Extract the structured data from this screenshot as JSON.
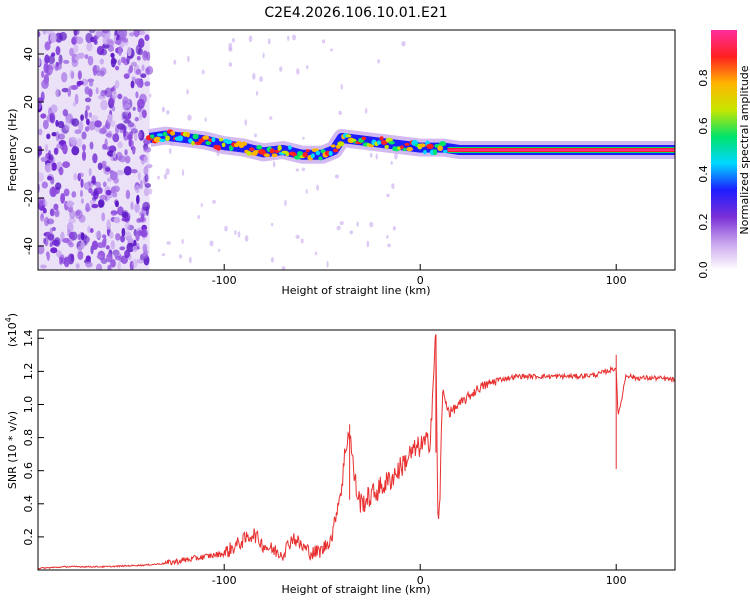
{
  "figure_title": "C2E4.2026.106.10.01.E21",
  "chart_data": [
    {
      "type": "heatmap",
      "title": "C2E4.2026.106.10.01.E21",
      "xlabel": "Height of straight line (km)",
      "ylabel": "Frequency (Hz)",
      "xlim": [
        -195,
        130
      ],
      "ylim": [
        -50,
        50
      ],
      "x_ticks": [
        -100,
        0,
        100
      ],
      "x_tick_labels": [
        "-100",
        "0",
        "100"
      ],
      "y_ticks": [
        -40,
        -20,
        0,
        20,
        40
      ],
      "y_tick_labels": [
        "-40",
        "-20",
        "0",
        "20",
        "40"
      ],
      "noise_region_x": [
        -195,
        -138
      ],
      "signal_track": {
        "x": [
          -138,
          -130,
          -120,
          -110,
          -100,
          -90,
          -80,
          -70,
          -60,
          -50,
          -44,
          -40,
          -30,
          -20,
          -10,
          0,
          12,
          20,
          40,
          60,
          80,
          100,
          130
        ],
        "y": [
          5,
          6,
          5,
          4,
          2,
          1,
          -1,
          0,
          -2,
          -2,
          0,
          5,
          4,
          3,
          2,
          1,
          1,
          0,
          0,
          0,
          0,
          0,
          0
        ]
      },
      "colorbar": {
        "label": "Normalized spectral amplitude",
        "range": [
          0,
          1
        ],
        "ticks": [
          0.0,
          0.2,
          0.4,
          0.6,
          0.8
        ],
        "tick_labels": [
          "0.0",
          "0.2",
          "0.4",
          "0.6",
          "0.8"
        ],
        "colors": [
          "#ffffff",
          "#c9a6ee",
          "#7a2fd6",
          "#1d1dff",
          "#00d8ff",
          "#00e36a",
          "#c6e600",
          "#ffb400",
          "#ff2020",
          "#ff2d9c"
        ]
      }
    },
    {
      "type": "line",
      "xlabel": "Height of straight line (km)",
      "ylabel": "SNR (10 * v/v)",
      "y_multiplier_label": "(x10",
      "y_multiplier_exp": "4",
      "xlim": [
        -195,
        130
      ],
      "ylim": [
        0,
        1.45
      ],
      "x_ticks": [
        -100,
        0,
        100
      ],
      "x_tick_labels": [
        "-100",
        "0",
        "100"
      ],
      "y_ticks": [
        0.2,
        0.4,
        0.6,
        0.8,
        1.0,
        1.2,
        1.4
      ],
      "y_tick_labels": [
        "0.2",
        "0.4",
        "0.6",
        "0.8",
        "1.0",
        "1.2",
        "1.4"
      ],
      "line_color": "#e83030",
      "series": [
        {
          "name": "SNR",
          "x": [
            -195,
            -180,
            -160,
            -140,
            -130,
            -120,
            -110,
            -100,
            -95,
            -90,
            -85,
            -80,
            -75,
            -70,
            -65,
            -60,
            -55,
            -50,
            -45,
            -42,
            -40,
            -38,
            -36,
            -34,
            -32,
            -30,
            -25,
            -20,
            -15,
            -10,
            -5,
            0,
            5,
            8,
            9,
            10,
            11,
            12,
            15,
            20,
            25,
            30,
            40,
            50,
            60,
            70,
            80,
            90,
            100,
            101,
            105,
            110,
            120,
            130
          ],
          "y": [
            0.01,
            0.02,
            0.02,
            0.03,
            0.04,
            0.06,
            0.08,
            0.1,
            0.14,
            0.18,
            0.22,
            0.15,
            0.12,
            0.1,
            0.2,
            0.14,
            0.1,
            0.12,
            0.2,
            0.4,
            0.5,
            0.75,
            0.85,
            0.6,
            0.45,
            0.4,
            0.45,
            0.5,
            0.55,
            0.62,
            0.7,
            0.75,
            0.78,
            1.42,
            0.3,
            0.35,
            1.0,
            1.05,
            0.95,
            1.0,
            1.05,
            1.1,
            1.15,
            1.17,
            1.17,
            1.17,
            1.17,
            1.18,
            1.22,
            0.92,
            1.18,
            1.16,
            1.16,
            1.15
          ]
        }
      ]
    }
  ]
}
